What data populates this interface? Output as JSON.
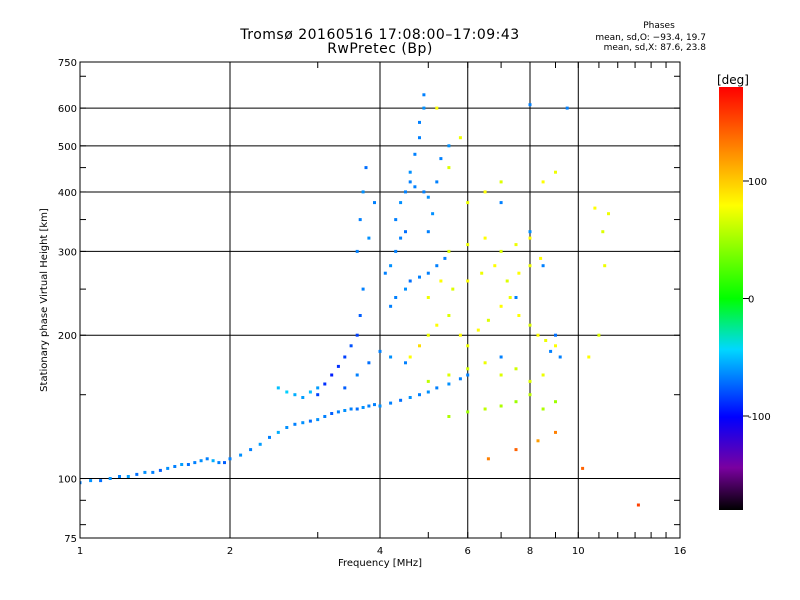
{
  "chart_data": {
    "type": "scatter",
    "title": "Tromsø 20160516 17:08:00–17:09:43",
    "subtitle": "RwPretec (Bp)",
    "xlabel": "Frequency [MHz]",
    "ylabel": "Stationary phase Virtual Height [km]",
    "x_scale": "log",
    "y_scale": "log",
    "xlim": [
      1,
      16
    ],
    "ylim": [
      75,
      750
    ],
    "x_ticks": [
      1,
      2,
      4,
      6,
      8,
      10,
      16
    ],
    "x_tick_labels": [
      "1",
      "2",
      "4",
      "6",
      "8",
      "10",
      "16"
    ],
    "y_ticks": [
      75,
      100,
      200,
      300,
      400,
      500,
      600,
      750
    ],
    "y_tick_labels": [
      "75",
      "100",
      "200",
      "300",
      "400",
      "500",
      "600",
      "750"
    ],
    "grid": true,
    "colorbar": {
      "label": "[deg]",
      "range": [
        -180,
        180
      ],
      "ticks": [
        -100,
        0,
        100
      ],
      "tick_labels": [
        "-100",
        "0",
        "100"
      ]
    },
    "legend": {
      "heading": "Phases",
      "lines": [
        "mean, sd,O: −93.4, 19.7",
        "mean, sd,X:  87.6, 23.8"
      ]
    },
    "series": [
      {
        "name": "O",
        "points": [
          [
            1.0,
            98,
            -100
          ],
          [
            1.05,
            99,
            -95
          ],
          [
            1.1,
            99,
            -105
          ],
          [
            1.15,
            100,
            -95
          ],
          [
            1.2,
            101,
            -100
          ],
          [
            1.25,
            101,
            -90
          ],
          [
            1.3,
            102,
            -105
          ],
          [
            1.35,
            103,
            -95
          ],
          [
            1.4,
            103,
            -100
          ],
          [
            1.45,
            104,
            -110
          ],
          [
            1.5,
            105,
            -95
          ],
          [
            1.55,
            106,
            -100
          ],
          [
            1.6,
            107,
            -90
          ],
          [
            1.65,
            107,
            -105
          ],
          [
            1.7,
            108,
            -100
          ],
          [
            1.75,
            109,
            -95
          ],
          [
            1.8,
            110,
            -100
          ],
          [
            1.85,
            109,
            -85
          ],
          [
            1.9,
            108,
            -100
          ],
          [
            1.95,
            108,
            -110
          ],
          [
            2.0,
            110,
            -100
          ],
          [
            2.1,
            112,
            -95
          ],
          [
            2.2,
            115,
            -100
          ],
          [
            2.3,
            118,
            -90
          ],
          [
            2.4,
            122,
            -100
          ],
          [
            2.5,
            125,
            -85
          ],
          [
            2.6,
            128,
            -95
          ],
          [
            2.7,
            130,
            -100
          ],
          [
            2.8,
            131,
            -95
          ],
          [
            2.9,
            132,
            -105
          ],
          [
            3.0,
            133,
            -95
          ],
          [
            3.1,
            135,
            -100
          ],
          [
            3.2,
            137,
            -110
          ],
          [
            3.3,
            138,
            -100
          ],
          [
            3.4,
            139,
            -95
          ],
          [
            3.5,
            140,
            -100
          ],
          [
            3.6,
            140,
            -105
          ],
          [
            3.7,
            141,
            -95
          ],
          [
            3.8,
            142,
            -100
          ],
          [
            3.9,
            143,
            -100
          ],
          [
            4.0,
            142,
            -95
          ],
          [
            4.2,
            144,
            -100
          ],
          [
            4.4,
            146,
            -105
          ],
          [
            4.6,
            148,
            -95
          ],
          [
            4.8,
            150,
            -100
          ],
          [
            5.0,
            152,
            -95
          ],
          [
            5.2,
            155,
            -100
          ],
          [
            5.5,
            158,
            -95
          ],
          [
            5.8,
            162,
            -100
          ],
          [
            6.0,
            165,
            -100
          ],
          [
            2.5,
            155,
            -80
          ],
          [
            2.6,
            152,
            -75
          ],
          [
            2.7,
            150,
            -85
          ],
          [
            2.8,
            148,
            -90
          ],
          [
            2.9,
            152,
            -80
          ],
          [
            3.0,
            155,
            -90
          ],
          [
            3.0,
            150,
            -120
          ],
          [
            3.1,
            158,
            -125
          ],
          [
            3.2,
            165,
            -130
          ],
          [
            3.3,
            172,
            -125
          ],
          [
            3.4,
            180,
            -120
          ],
          [
            3.5,
            190,
            -115
          ],
          [
            3.6,
            200,
            -120
          ],
          [
            3.4,
            155,
            -110
          ],
          [
            3.6,
            165,
            -100
          ],
          [
            3.8,
            175,
            -105
          ],
          [
            4.0,
            185,
            -100
          ],
          [
            4.2,
            180,
            -95
          ],
          [
            4.5,
            175,
            -100
          ],
          [
            3.6,
            300,
            -100
          ],
          [
            3.65,
            350,
            -100
          ],
          [
            3.7,
            400,
            -95
          ],
          [
            3.75,
            450,
            -105
          ],
          [
            3.7,
            250,
            -100
          ],
          [
            3.65,
            220,
            -110
          ],
          [
            3.8,
            320,
            -95
          ],
          [
            3.9,
            380,
            -100
          ],
          [
            4.1,
            270,
            -100
          ],
          [
            4.2,
            280,
            -95
          ],
          [
            4.3,
            300,
            -100
          ],
          [
            4.4,
            320,
            -100
          ],
          [
            4.5,
            330,
            -105
          ],
          [
            4.3,
            350,
            -100
          ],
          [
            4.4,
            380,
            -95
          ],
          [
            4.5,
            400,
            -100
          ],
          [
            4.6,
            420,
            -100
          ],
          [
            4.6,
            440,
            -95
          ],
          [
            4.7,
            480,
            -100
          ],
          [
            4.8,
            520,
            -100
          ],
          [
            4.8,
            560,
            -100
          ],
          [
            4.9,
            600,
            -95
          ],
          [
            4.9,
            640,
            -100
          ],
          [
            4.7,
            410,
            -100
          ],
          [
            4.9,
            400,
            -100
          ],
          [
            5.0,
            390,
            -95
          ],
          [
            4.2,
            230,
            -100
          ],
          [
            4.3,
            240,
            -100
          ],
          [
            4.5,
            250,
            -95
          ],
          [
            4.6,
            260,
            -105
          ],
          [
            4.8,
            265,
            -100
          ],
          [
            5.0,
            270,
            -100
          ],
          [
            5.2,
            280,
            -100
          ],
          [
            5.4,
            290,
            -100
          ],
          [
            5.0,
            330,
            -100
          ],
          [
            5.1,
            360,
            -95
          ],
          [
            5.2,
            420,
            -100
          ],
          [
            5.3,
            470,
            -100
          ],
          [
            5.5,
            500,
            -95
          ],
          [
            7.0,
            180,
            -100
          ],
          [
            7.5,
            240,
            -100
          ],
          [
            8.0,
            330,
            -95
          ],
          [
            8.5,
            280,
            -100
          ],
          [
            8.8,
            185,
            -100
          ],
          [
            9.0,
            200,
            -105
          ],
          [
            9.2,
            180,
            -100
          ],
          [
            7.0,
            380,
            -100
          ],
          [
            9.5,
            600,
            -100
          ],
          [
            8.0,
            610,
            -100
          ]
        ]
      },
      {
        "name": "X",
        "points": [
          [
            4.6,
            180,
            100
          ],
          [
            4.8,
            190,
            110
          ],
          [
            5.0,
            200,
            95
          ],
          [
            5.2,
            210,
            100
          ],
          [
            5.5,
            220,
            90
          ],
          [
            5.8,
            200,
            100
          ],
          [
            6.0,
            190,
            95
          ],
          [
            6.3,
            205,
            100
          ],
          [
            6.6,
            215,
            90
          ],
          [
            7.0,
            230,
            100
          ],
          [
            7.3,
            240,
            95
          ],
          [
            7.6,
            220,
            100
          ],
          [
            8.0,
            210,
            90
          ],
          [
            8.3,
            200,
            100
          ],
          [
            8.6,
            195,
            95
          ],
          [
            9.0,
            190,
            100
          ],
          [
            5.0,
            240,
            95
          ],
          [
            5.3,
            260,
            100
          ],
          [
            5.6,
            250,
            90
          ],
          [
            6.0,
            260,
            100
          ],
          [
            6.4,
            270,
            95
          ],
          [
            6.8,
            280,
            100
          ],
          [
            7.2,
            260,
            90
          ],
          [
            7.6,
            270,
            100
          ],
          [
            8.0,
            280,
            95
          ],
          [
            8.4,
            290,
            100
          ],
          [
            5.5,
            300,
            90
          ],
          [
            6.0,
            310,
            95
          ],
          [
            6.5,
            320,
            100
          ],
          [
            7.0,
            300,
            90
          ],
          [
            7.5,
            310,
            95
          ],
          [
            8.0,
            320,
            100
          ],
          [
            5.0,
            160,
            80
          ],
          [
            5.5,
            165,
            90
          ],
          [
            6.0,
            170,
            85
          ],
          [
            6.5,
            175,
            95
          ],
          [
            7.0,
            165,
            90
          ],
          [
            7.5,
            170,
            85
          ],
          [
            8.0,
            160,
            90
          ],
          [
            8.5,
            165,
            95
          ],
          [
            5.5,
            135,
            75
          ],
          [
            6.0,
            138,
            70
          ],
          [
            6.5,
            140,
            80
          ],
          [
            7.0,
            142,
            75
          ],
          [
            7.5,
            145,
            70
          ],
          [
            8.0,
            150,
            80
          ],
          [
            8.5,
            140,
            75
          ],
          [
            9.0,
            145,
            70
          ],
          [
            6.0,
            380,
            95
          ],
          [
            6.5,
            400,
            100
          ],
          [
            7.0,
            420,
            90
          ],
          [
            8.5,
            420,
            100
          ],
          [
            9.0,
            440,
            95
          ],
          [
            5.5,
            450,
            90
          ],
          [
            5.8,
            520,
            95
          ],
          [
            5.2,
            600,
            100
          ],
          [
            10.5,
            180,
            100
          ],
          [
            11.0,
            200,
            90
          ],
          [
            10.8,
            370,
            100
          ],
          [
            11.5,
            360,
            95
          ],
          [
            11.2,
            330,
            90
          ],
          [
            11.3,
            280,
            95
          ],
          [
            6.6,
            110,
            140
          ],
          [
            7.5,
            115,
            150
          ],
          [
            8.3,
            120,
            130
          ],
          [
            9.0,
            125,
            140
          ],
          [
            10.2,
            105,
            150
          ],
          [
            13.2,
            88,
            160
          ]
        ]
      }
    ]
  }
}
